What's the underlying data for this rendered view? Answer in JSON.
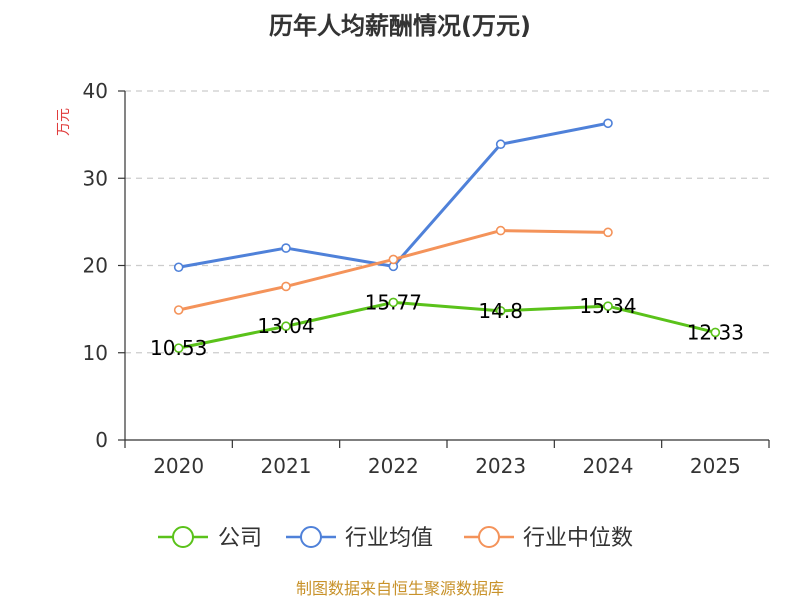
{
  "chart_data": {
    "type": "line",
    "title": "历年人均薪酬情况(万元)",
    "ylabel": "万元",
    "xlabel": "",
    "ylim": [
      0,
      40
    ],
    "yticks": [
      0,
      10,
      20,
      30,
      40
    ],
    "grid": true,
    "legend_position": "bottom",
    "categories": [
      "2020",
      "2021",
      "2022",
      "2023",
      "2024",
      "2025"
    ],
    "series": [
      {
        "name": "公司",
        "color": "#5ac21a",
        "values": [
          10.53,
          13.04,
          15.77,
          14.8,
          15.34,
          12.33
        ],
        "labels": [
          "10.53",
          "13.04",
          "15.77",
          "14.8",
          "15.34",
          "12.33"
        ]
      },
      {
        "name": "行业均值",
        "color": "#4f81d9",
        "values": [
          19.8,
          22.0,
          19.9,
          33.9,
          36.3,
          null
        ]
      },
      {
        "name": "行业中位数",
        "color": "#f4935a",
        "values": [
          14.9,
          17.6,
          20.7,
          24.0,
          23.8,
          null
        ]
      }
    ]
  },
  "source": "制图数据来自恒生聚源数据库",
  "colors": {
    "source_text": "#c8922a",
    "ylabel_text": "#e03c3c",
    "axis": "#333333",
    "grid": "#cccccc"
  }
}
